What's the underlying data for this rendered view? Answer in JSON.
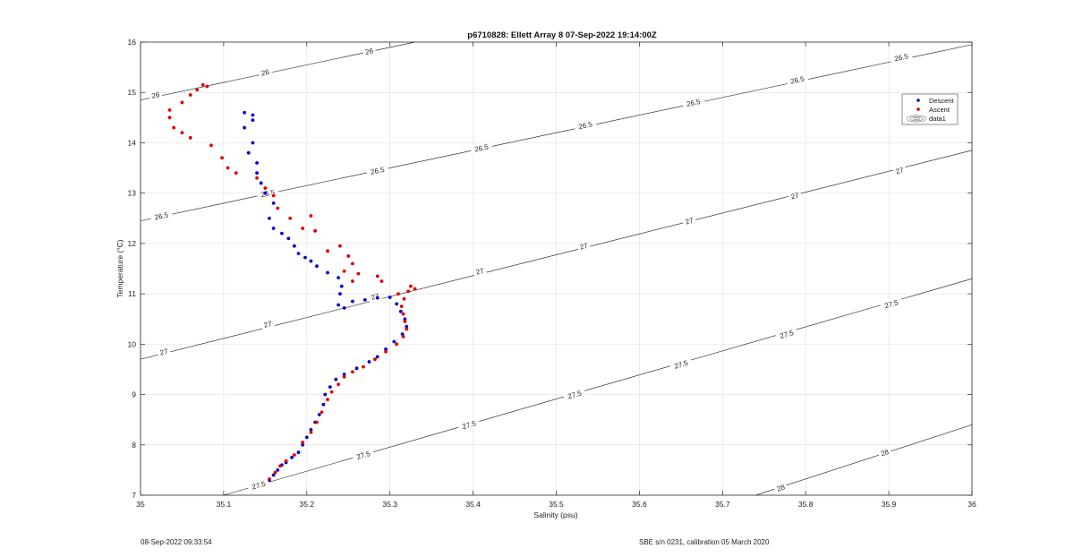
{
  "chart_data": {
    "type": "scatter",
    "title": "p6710828: Ellett Array 8 07-Sep-2022 19:14:00Z",
    "xlabel": "Salinity (psu)",
    "ylabel": "Temperature (°C)",
    "xlim": [
      35,
      36
    ],
    "ylim": [
      7,
      16
    ],
    "xticks": [
      "35",
      "35.1",
      "35.2",
      "35.3",
      "35.4",
      "35.5",
      "35.6",
      "35.7",
      "35.8",
      "35.9",
      "36"
    ],
    "yticks": [
      "7",
      "8",
      "9",
      "10",
      "11",
      "12",
      "13",
      "14",
      "15",
      "16"
    ],
    "grid": true,
    "legend_position": "top-right",
    "legend": [
      "Descent",
      "Ascent",
      "data1"
    ],
    "colors": {
      "descent": "#0000cc",
      "ascent": "#e00000",
      "contour": "#333333"
    },
    "series": [
      {
        "name": "Descent",
        "points": [
          [
            35.155,
            7.3
          ],
          [
            35.16,
            7.4
          ],
          [
            35.165,
            7.5
          ],
          [
            35.17,
            7.6
          ],
          [
            35.175,
            7.65
          ],
          [
            35.182,
            7.75
          ],
          [
            35.19,
            7.85
          ],
          [
            35.195,
            8.0
          ],
          [
            35.2,
            8.15
          ],
          [
            35.205,
            8.3
          ],
          [
            35.21,
            8.45
          ],
          [
            35.215,
            8.6
          ],
          [
            35.22,
            8.8
          ],
          [
            35.222,
            9.0
          ],
          [
            35.228,
            9.15
          ],
          [
            35.235,
            9.3
          ],
          [
            35.245,
            9.4
          ],
          [
            35.26,
            9.52
          ],
          [
            35.275,
            9.65
          ],
          [
            35.285,
            9.75
          ],
          [
            35.295,
            9.9
          ],
          [
            35.305,
            10.05
          ],
          [
            35.315,
            10.2
          ],
          [
            35.32,
            10.35
          ],
          [
            35.318,
            10.5
          ],
          [
            35.313,
            10.65
          ],
          [
            35.308,
            10.8
          ],
          [
            35.3,
            10.93
          ],
          [
            35.285,
            10.92
          ],
          [
            35.27,
            10.88
          ],
          [
            35.255,
            10.85
          ],
          [
            35.245,
            10.72
          ],
          [
            35.238,
            10.78
          ],
          [
            35.24,
            11.0
          ],
          [
            35.242,
            11.15
          ],
          [
            35.238,
            11.32
          ],
          [
            35.225,
            11.42
          ],
          [
            35.212,
            11.55
          ],
          [
            35.205,
            11.65
          ],
          [
            35.198,
            11.72
          ],
          [
            35.19,
            11.8
          ],
          [
            35.185,
            11.95
          ],
          [
            35.178,
            12.1
          ],
          [
            35.17,
            12.2
          ],
          [
            35.16,
            12.3
          ],
          [
            35.155,
            12.5
          ],
          [
            35.16,
            12.8
          ],
          [
            35.15,
            13.0
          ],
          [
            35.145,
            13.2
          ],
          [
            35.14,
            13.4
          ],
          [
            35.14,
            13.6
          ],
          [
            35.13,
            13.8
          ],
          [
            35.135,
            14.0
          ],
          [
            35.125,
            14.3
          ],
          [
            35.135,
            14.45
          ],
          [
            35.125,
            14.6
          ],
          [
            35.135,
            14.55
          ]
        ]
      },
      {
        "name": "Ascent",
        "points": [
          [
            35.155,
            7.32
          ],
          [
            35.162,
            7.45
          ],
          [
            35.168,
            7.58
          ],
          [
            35.175,
            7.68
          ],
          [
            35.185,
            7.8
          ],
          [
            35.195,
            8.05
          ],
          [
            35.205,
            8.25
          ],
          [
            35.212,
            8.45
          ],
          [
            35.218,
            8.65
          ],
          [
            35.225,
            8.9
          ],
          [
            35.23,
            9.05
          ],
          [
            35.238,
            9.2
          ],
          [
            35.245,
            9.35
          ],
          [
            35.255,
            9.45
          ],
          [
            35.268,
            9.55
          ],
          [
            35.282,
            9.7
          ],
          [
            35.295,
            9.85
          ],
          [
            35.308,
            10.0
          ],
          [
            35.316,
            10.15
          ],
          [
            35.32,
            10.3
          ],
          [
            35.318,
            10.45
          ],
          [
            35.316,
            10.6
          ],
          [
            35.314,
            10.75
          ],
          [
            35.317,
            10.9
          ],
          [
            35.322,
            11.05
          ],
          [
            35.325,
            11.15
          ],
          [
            35.33,
            11.1
          ],
          [
            35.31,
            11.0
          ],
          [
            35.29,
            11.25
          ],
          [
            35.285,
            11.35
          ],
          [
            35.262,
            11.4
          ],
          [
            35.255,
            11.25
          ],
          [
            35.245,
            11.45
          ],
          [
            35.255,
            11.6
          ],
          [
            35.25,
            11.75
          ],
          [
            35.24,
            11.95
          ],
          [
            35.225,
            11.85
          ],
          [
            35.21,
            12.25
          ],
          [
            35.205,
            12.55
          ],
          [
            35.195,
            12.3
          ],
          [
            35.18,
            12.5
          ],
          [
            35.165,
            12.7
          ],
          [
            35.16,
            12.95
          ],
          [
            35.15,
            13.1
          ],
          [
            35.14,
            13.3
          ],
          [
            35.115,
            13.4
          ],
          [
            35.105,
            13.5
          ],
          [
            35.098,
            13.7
          ],
          [
            35.085,
            13.95
          ],
          [
            35.06,
            14.1
          ],
          [
            35.05,
            14.2
          ],
          [
            35.04,
            14.3
          ],
          [
            35.035,
            14.5
          ],
          [
            35.035,
            14.65
          ],
          [
            35.05,
            14.8
          ],
          [
            35.06,
            14.95
          ],
          [
            35.068,
            15.05
          ],
          [
            35.075,
            15.15
          ],
          [
            35.08,
            15.12
          ]
        ]
      }
    ],
    "contours": [
      {
        "label": "26",
        "points": [
          [
            35.0,
            14.85
          ],
          [
            35.33,
            16.0
          ]
        ],
        "labels_at": [
          [
            35.018,
            14.95
          ],
          [
            35.15,
            15.4
          ],
          [
            35.275,
            15.82
          ]
        ]
      },
      {
        "label": "26.5",
        "points": [
          [
            35.0,
            12.45
          ],
          [
            36.0,
            15.95
          ]
        ],
        "labels_at": [
          [
            35.025,
            12.55
          ],
          [
            35.153,
            13.0
          ],
          [
            35.285,
            13.45
          ],
          [
            35.41,
            13.9
          ],
          [
            35.535,
            14.35
          ],
          [
            35.665,
            14.8
          ],
          [
            35.79,
            15.25
          ],
          [
            35.915,
            15.7
          ]
        ]
      },
      {
        "label": "27",
        "points": [
          [
            35.0,
            9.7
          ],
          [
            36.0,
            13.85
          ]
        ],
        "labels_at": [
          [
            35.028,
            9.85
          ],
          [
            35.153,
            10.4
          ],
          [
            35.282,
            10.95
          ],
          [
            35.408,
            11.45
          ],
          [
            35.533,
            11.95
          ],
          [
            35.66,
            12.45
          ],
          [
            35.787,
            12.95
          ],
          [
            35.913,
            13.45
          ]
        ]
      },
      {
        "label": "27.5",
        "points": [
          [
            35.1,
            7.0
          ],
          [
            36.0,
            11.3
          ]
        ],
        "labels_at": [
          [
            35.142,
            7.2
          ],
          [
            35.268,
            7.8
          ],
          [
            35.395,
            8.4
          ],
          [
            35.522,
            9.0
          ],
          [
            35.65,
            9.6
          ],
          [
            35.777,
            10.2
          ],
          [
            35.903,
            10.8
          ]
        ]
      },
      {
        "label": "28",
        "points": [
          [
            35.74,
            7.0
          ],
          [
            36.0,
            8.4
          ]
        ],
        "labels_at": [
          [
            35.77,
            7.15
          ],
          [
            35.895,
            7.85
          ]
        ]
      }
    ]
  },
  "footer": {
    "date": "08-Sep-2022 09:33:54",
    "sensor": "SBE s/n 0231, calibration 05 March 2020"
  }
}
